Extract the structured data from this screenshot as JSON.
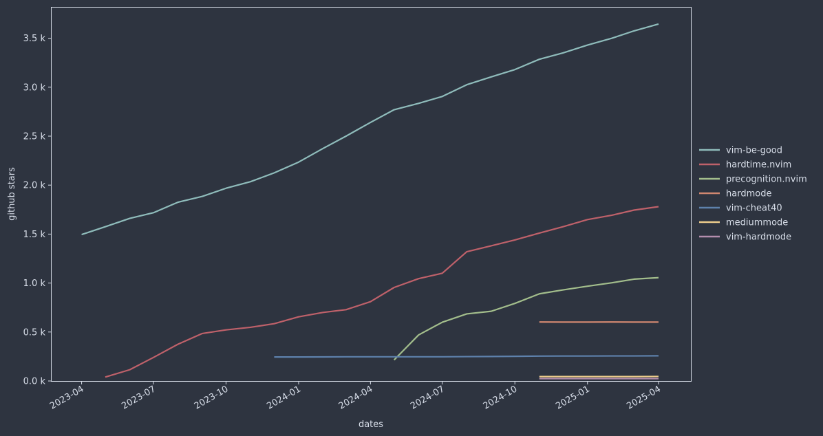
{
  "chart_data": {
    "type": "line",
    "xlabel": "dates",
    "ylabel": "github stars",
    "x_ticks": [
      "2023-04",
      "2023-07",
      "2023-10",
      "2024-01",
      "2024-04",
      "2024-07",
      "2024-10",
      "2025-01",
      "2025-04"
    ],
    "y_ticks": [
      0,
      500,
      1000,
      1500,
      2000,
      2500,
      3000,
      3500
    ],
    "y_tick_labels": [
      "0.0 k",
      "0.5 k",
      "1.0 k",
      "1.5 k",
      "2.0 k",
      "2.5 k",
      "3.0 k",
      "3.5 k"
    ],
    "xlim": [
      "2023-02-22",
      "2025-05-12"
    ],
    "ylim": [
      0,
      3820
    ],
    "grid": false,
    "legend_position": "right",
    "series": [
      {
        "name": "vim-be-good",
        "color": "#8fbcbb",
        "points": [
          [
            "2023-04-01",
            1495
          ],
          [
            "2023-05-01",
            1575
          ],
          [
            "2023-06-01",
            1660
          ],
          [
            "2023-07-01",
            1718
          ],
          [
            "2023-08-01",
            1825
          ],
          [
            "2023-09-01",
            1885
          ],
          [
            "2023-10-01",
            1968
          ],
          [
            "2023-11-01",
            2035
          ],
          [
            "2023-12-01",
            2125
          ],
          [
            "2024-01-01",
            2235
          ],
          [
            "2024-02-01",
            2375
          ],
          [
            "2024-03-01",
            2500
          ],
          [
            "2024-04-01",
            2640
          ],
          [
            "2024-05-01",
            2770
          ],
          [
            "2024-06-01",
            2835
          ],
          [
            "2024-07-01",
            2905
          ],
          [
            "2024-08-01",
            3025
          ],
          [
            "2024-09-01",
            3105
          ],
          [
            "2024-10-01",
            3180
          ],
          [
            "2024-11-01",
            3285
          ],
          [
            "2024-12-01",
            3350
          ],
          [
            "2025-01-01",
            3430
          ],
          [
            "2025-02-01",
            3500
          ],
          [
            "2025-03-01",
            3575
          ],
          [
            "2025-04-01",
            3645
          ]
        ]
      },
      {
        "name": "hardtime.nvim",
        "color": "#bf616a",
        "points": [
          [
            "2023-05-01",
            40
          ],
          [
            "2023-06-01",
            115
          ],
          [
            "2023-07-01",
            240
          ],
          [
            "2023-08-01",
            375
          ],
          [
            "2023-09-01",
            485
          ],
          [
            "2023-10-01",
            522
          ],
          [
            "2023-11-01",
            548
          ],
          [
            "2023-12-01",
            585
          ],
          [
            "2024-01-01",
            655
          ],
          [
            "2024-02-01",
            700
          ],
          [
            "2024-03-01",
            728
          ],
          [
            "2024-04-01",
            810
          ],
          [
            "2024-05-01",
            955
          ],
          [
            "2024-06-01",
            1045
          ],
          [
            "2024-07-01",
            1100
          ],
          [
            "2024-08-01",
            1320
          ],
          [
            "2024-09-01",
            1380
          ],
          [
            "2024-10-01",
            1440
          ],
          [
            "2024-11-01",
            1510
          ],
          [
            "2024-12-01",
            1575
          ],
          [
            "2025-01-01",
            1648
          ],
          [
            "2025-02-01",
            1693
          ],
          [
            "2025-03-01",
            1745
          ],
          [
            "2025-04-01",
            1780
          ]
        ]
      },
      {
        "name": "precognition.nvim",
        "color": "#a3be8c",
        "points": [
          [
            "2024-05-01",
            215
          ],
          [
            "2024-06-01",
            470
          ],
          [
            "2024-07-01",
            600
          ],
          [
            "2024-08-01",
            685
          ],
          [
            "2024-09-01",
            712
          ],
          [
            "2024-10-01",
            792
          ],
          [
            "2024-11-01",
            890
          ],
          [
            "2024-12-01",
            930
          ],
          [
            "2025-01-01",
            968
          ],
          [
            "2025-02-01",
            1003
          ],
          [
            "2025-03-01",
            1040
          ],
          [
            "2025-04-01",
            1055
          ]
        ]
      },
      {
        "name": "hardmode",
        "color": "#d08770",
        "points": [
          [
            "2024-11-01",
            602
          ],
          [
            "2024-12-01",
            601
          ],
          [
            "2025-01-01",
            601
          ],
          [
            "2025-02-01",
            602
          ],
          [
            "2025-03-01",
            601
          ],
          [
            "2025-04-01",
            601
          ]
        ]
      },
      {
        "name": "vim-cheat40",
        "color": "#5e81ac",
        "points": [
          [
            "2023-12-01",
            245
          ],
          [
            "2024-01-01",
            245
          ],
          [
            "2024-02-01",
            246
          ],
          [
            "2024-03-01",
            247
          ],
          [
            "2024-04-01",
            247
          ],
          [
            "2024-05-01",
            247
          ],
          [
            "2024-06-01",
            247
          ],
          [
            "2024-07-01",
            247
          ],
          [
            "2024-08-01",
            249
          ],
          [
            "2024-09-01",
            250
          ],
          [
            "2024-10-01",
            252
          ],
          [
            "2024-11-01",
            254
          ],
          [
            "2024-12-01",
            255
          ],
          [
            "2025-01-01",
            255
          ],
          [
            "2025-02-01",
            256
          ],
          [
            "2025-03-01",
            256
          ],
          [
            "2025-04-01",
            257
          ]
        ]
      },
      {
        "name": "mediummode",
        "color": "#ebcb8b",
        "points": [
          [
            "2024-11-01",
            45
          ],
          [
            "2024-12-01",
            45
          ],
          [
            "2025-01-01",
            45
          ],
          [
            "2025-02-01",
            45
          ],
          [
            "2025-03-01",
            45
          ],
          [
            "2025-04-01",
            46
          ]
        ]
      },
      {
        "name": "vim-hardmode",
        "color": "#b48ead",
        "points": [
          [
            "2024-11-01",
            24
          ],
          [
            "2024-12-01",
            24
          ],
          [
            "2025-01-01",
            24
          ],
          [
            "2025-02-01",
            24
          ],
          [
            "2025-03-01",
            24
          ],
          [
            "2025-04-01",
            24
          ]
        ]
      }
    ]
  }
}
